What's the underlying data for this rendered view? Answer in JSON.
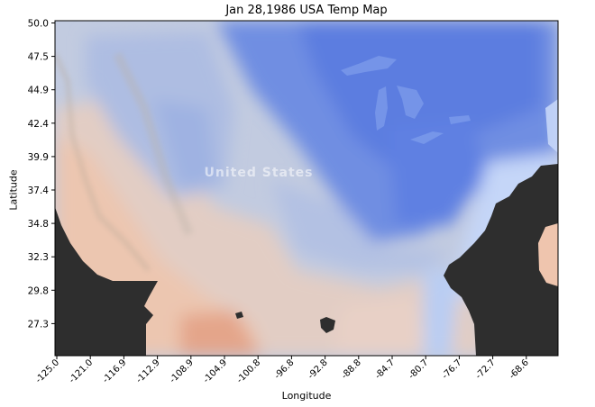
{
  "map": {
    "title": "Jan 28,1986 USA Temp Map",
    "xlabel": "Longitude",
    "ylabel": "Latitude",
    "basemap_label": "United States",
    "x_ticks": [
      "-125.0",
      "-121.0",
      "-116.9",
      "-112.9",
      "-108.9",
      "-104.9",
      "-100.8",
      "-96.8",
      "-92.8",
      "-88.8",
      "-84.7",
      "-80.7",
      "-76.7",
      "-72.7",
      "-68.6"
    ],
    "y_ticks": [
      "50.0",
      "47.5",
      "44.9",
      "42.4",
      "39.9",
      "37.4",
      "34.8",
      "32.3",
      "29.8",
      "27.3"
    ],
    "colors": {
      "cold": "#5a7ee0",
      "cool": "#a7bde8",
      "neutral": "#d6d3d3",
      "warm": "#efc5ae",
      "hot": "#e49c80",
      "no_data": "#2e2e2e"
    }
  }
}
